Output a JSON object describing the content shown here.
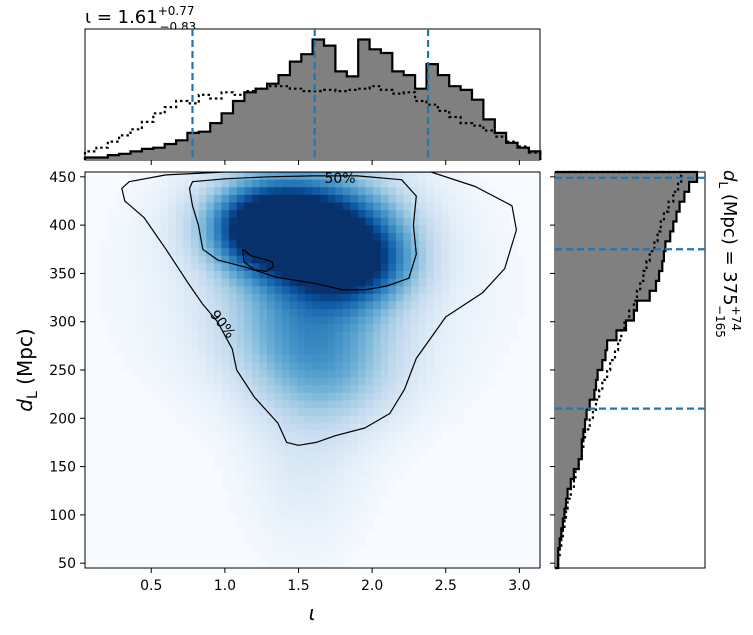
{
  "chart_data": {
    "type": "heatmap",
    "title_top": "ι = 1.61",
    "title_top_sup": "+0.77",
    "title_top_sub": "−0.83",
    "title_right_main": "d",
    "title_right_sub_L": "L",
    "title_right_unit": " (Mpc) = 375",
    "title_right_sup": "+74",
    "title_right_sub": "−165",
    "xlabel": "ι",
    "ylabel_main": "d",
    "ylabel_sub": "L",
    "ylabel_unit": " (Mpc)",
    "xlim": [
      0.05,
      3.14
    ],
    "ylim": [
      45,
      455
    ],
    "xticks": [
      "0.5",
      "1.0",
      "1.5",
      "2.0",
      "2.5",
      "3.0"
    ],
    "xtick_values": [
      0.5,
      1.0,
      1.5,
      2.0,
      2.5,
      3.0
    ],
    "yticks": [
      "50",
      "100",
      "150",
      "200",
      "250",
      "300",
      "350",
      "400",
      "450"
    ],
    "ytick_values": [
      50,
      100,
      150,
      200,
      250,
      300,
      350,
      400,
      450
    ],
    "contour_labels": [
      "50%",
      "90%"
    ],
    "iota_quantiles": [
      0.78,
      1.61,
      2.38
    ],
    "dl_quantiles": [
      210,
      375,
      449
    ],
    "iota_hist": {
      "edges_start": 0.05,
      "bin_width": 0.0773,
      "posterior": [
        0.02,
        0.02,
        0.04,
        0.05,
        0.07,
        0.09,
        0.1,
        0.13,
        0.16,
        0.22,
        0.23,
        0.3,
        0.38,
        0.48,
        0.55,
        0.58,
        0.62,
        0.69,
        0.8,
        0.86,
        0.98,
        0.93,
        0.72,
        0.68,
        0.98,
        0.9,
        0.87,
        0.72,
        0.69,
        0.58,
        0.78,
        0.69,
        0.6,
        0.57,
        0.49,
        0.33,
        0.22,
        0.14,
        0.1,
        0.07
      ],
      "prior": [
        0.07,
        0.1,
        0.15,
        0.2,
        0.25,
        0.31,
        0.38,
        0.43,
        0.48,
        0.46,
        0.53,
        0.5,
        0.55,
        0.53,
        0.56,
        0.58,
        0.6,
        0.6,
        0.58,
        0.56,
        0.56,
        0.57,
        0.56,
        0.57,
        0.58,
        0.6,
        0.57,
        0.54,
        0.55,
        0.48,
        0.45,
        0.4,
        0.35,
        0.3,
        0.28,
        0.24,
        0.19,
        0.15,
        0.11,
        0.06
      ]
    },
    "dl_hist": {
      "edges_start": 45,
      "bin_width": 10.25,
      "posterior": [
        0.02,
        0.02,
        0.03,
        0.04,
        0.05,
        0.06,
        0.07,
        0.08,
        0.1,
        0.12,
        0.15,
        0.17,
        0.17,
        0.18,
        0.19,
        0.2,
        0.22,
        0.25,
        0.26,
        0.27,
        0.3,
        0.32,
        0.33,
        0.39,
        0.45,
        0.5,
        0.52,
        0.6,
        0.64,
        0.66,
        0.68,
        0.69,
        0.7,
        0.73,
        0.75,
        0.77,
        0.79,
        0.82,
        0.85,
        0.9
      ],
      "prior": [
        0.02,
        0.03,
        0.04,
        0.05,
        0.06,
        0.07,
        0.08,
        0.1,
        0.12,
        0.13,
        0.15,
        0.17,
        0.18,
        0.19,
        0.22,
        0.24,
        0.26,
        0.28,
        0.3,
        0.33,
        0.35,
        0.38,
        0.4,
        0.42,
        0.44,
        0.47,
        0.5,
        0.52,
        0.54,
        0.56,
        0.58,
        0.6,
        0.63,
        0.65,
        0.67,
        0.69,
        0.72,
        0.75,
        0.78,
        0.8
      ]
    },
    "density_blobs": [
      {
        "x": 1.55,
        "y": 405,
        "sx": 0.42,
        "sy": 38,
        "w": 0.95
      },
      {
        "x": 1.85,
        "y": 360,
        "sx": 0.3,
        "sy": 30,
        "w": 0.75
      },
      {
        "x": 1.25,
        "y": 395,
        "sx": 0.25,
        "sy": 30,
        "w": 0.6
      },
      {
        "x": 1.55,
        "y": 300,
        "sx": 0.4,
        "sy": 45,
        "w": 0.42
      },
      {
        "x": 1.7,
        "y": 240,
        "sx": 0.35,
        "sy": 40,
        "w": 0.28
      },
      {
        "x": 1.55,
        "y": 150,
        "sx": 0.28,
        "sy": 60,
        "w": 0.12
      },
      {
        "x": 1.6,
        "y": 330,
        "sx": 0.75,
        "sy": 80,
        "w": 0.12
      }
    ],
    "contour_50": [
      [
        0.78,
        445
      ],
      [
        1.0,
        448
      ],
      [
        1.3,
        450
      ],
      [
        1.6,
        451
      ],
      [
        1.9,
        451
      ],
      [
        2.2,
        447
      ],
      [
        2.3,
        430
      ],
      [
        2.28,
        400
      ],
      [
        2.3,
        370
      ],
      [
        2.25,
        345
      ],
      [
        2.1,
        337
      ],
      [
        1.95,
        333
      ],
      [
        1.8,
        333
      ],
      [
        1.6,
        340
      ],
      [
        1.35,
        346
      ],
      [
        1.15,
        356
      ],
      [
        0.95,
        364
      ],
      [
        0.85,
        375
      ],
      [
        0.82,
        400
      ],
      [
        0.78,
        420
      ],
      [
        0.76,
        438
      ],
      [
        0.78,
        445
      ]
    ],
    "contour_50_small": [
      [
        1.12,
        375
      ],
      [
        1.18,
        368
      ],
      [
        1.26,
        365
      ],
      [
        1.32,
        362
      ],
      [
        1.33,
        357
      ],
      [
        1.28,
        352
      ],
      [
        1.2,
        354
      ],
      [
        1.13,
        362
      ],
      [
        1.12,
        375
      ]
    ],
    "contour_90": [
      [
        0.3,
        438
      ],
      [
        0.35,
        445
      ],
      [
        0.6,
        452
      ],
      [
        1.0,
        455
      ],
      [
        1.5,
        455
      ],
      [
        2.0,
        455
      ],
      [
        2.4,
        455
      ],
      [
        2.7,
        440
      ],
      [
        2.95,
        420
      ],
      [
        2.98,
        395
      ],
      [
        2.9,
        355
      ],
      [
        2.75,
        330
      ],
      [
        2.5,
        305
      ],
      [
        2.3,
        262
      ],
      [
        2.22,
        230
      ],
      [
        2.12,
        205
      ],
      [
        1.95,
        190
      ],
      [
        1.75,
        182
      ],
      [
        1.62,
        175
      ],
      [
        1.5,
        172
      ],
      [
        1.42,
        175
      ],
      [
        1.36,
        195
      ],
      [
        1.2,
        222
      ],
      [
        1.08,
        250
      ],
      [
        1.05,
        272
      ],
      [
        0.95,
        300
      ],
      [
        0.85,
        318
      ],
      [
        0.75,
        340
      ],
      [
        0.6,
        375
      ],
      [
        0.45,
        408
      ],
      [
        0.32,
        425
      ],
      [
        0.3,
        438
      ]
    ]
  }
}
